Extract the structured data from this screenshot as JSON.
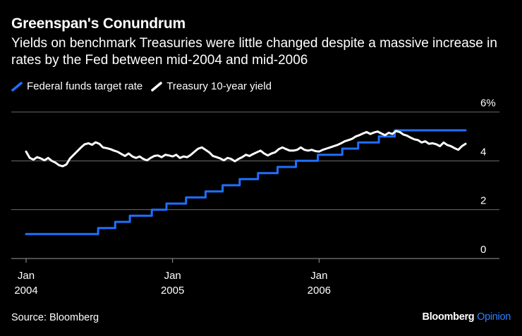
{
  "header": {
    "title": "Greenspan's Conundrum",
    "subtitle": "Yields on benchmark Treasuries were little changed despite a massive increase in rates by the Fed between mid-2004 and mid-2006"
  },
  "footer": {
    "source": "Source: Bloomberg",
    "brand_name": "Bloomberg",
    "brand_product": "Opinion"
  },
  "colors": {
    "background": "#000000",
    "fed_funds": "#1f6fff",
    "treasury": "#ffffff",
    "grid": "#6b6b6b",
    "brand_accent": "#2f7dff"
  },
  "chart_data": {
    "type": "line",
    "title": "Greenspan's Conundrum",
    "xlabel": "",
    "ylabel": "",
    "ylim": [
      0,
      6
    ],
    "xlim": [
      "2004-01",
      "2006-12"
    ],
    "y_ticks": [
      {
        "value": 0,
        "label": "0"
      },
      {
        "value": 2,
        "label": "2"
      },
      {
        "value": 4,
        "label": "4"
      },
      {
        "value": 6,
        "label": "6%"
      }
    ],
    "x_ticks": [
      {
        "month_index": 0,
        "label_top": "Jan",
        "label_bottom": "2004"
      },
      {
        "month_index": 12,
        "label_top": "Jan",
        "label_bottom": "2005"
      },
      {
        "month_index": 24,
        "label_top": "Jan",
        "label_bottom": "2006"
      }
    ],
    "legend": {
      "position": "top-left",
      "items": [
        {
          "name": "Federal funds target rate",
          "series": "fed_funds"
        },
        {
          "name": "Treasury 10-year yield",
          "series": "treasury"
        }
      ]
    },
    "series": [
      {
        "name": "Federal funds target rate",
        "key": "fed_funds",
        "step": true,
        "points": [
          [
            0,
            1.0
          ],
          [
            5.9,
            1.0
          ],
          [
            5.9,
            1.25
          ],
          [
            7.3,
            1.25
          ],
          [
            7.3,
            1.5
          ],
          [
            8.5,
            1.5
          ],
          [
            8.5,
            1.75
          ],
          [
            10.3,
            1.75
          ],
          [
            10.3,
            2.0
          ],
          [
            11.5,
            2.0
          ],
          [
            11.5,
            2.25
          ],
          [
            13.1,
            2.25
          ],
          [
            13.1,
            2.5
          ],
          [
            14.7,
            2.5
          ],
          [
            14.7,
            2.75
          ],
          [
            16.1,
            2.75
          ],
          [
            16.1,
            3.0
          ],
          [
            17.5,
            3.0
          ],
          [
            17.5,
            3.25
          ],
          [
            19.0,
            3.25
          ],
          [
            19.0,
            3.5
          ],
          [
            20.6,
            3.5
          ],
          [
            20.6,
            3.75
          ],
          [
            22.1,
            3.75
          ],
          [
            22.1,
            4.0
          ],
          [
            23.9,
            4.0
          ],
          [
            23.9,
            4.25
          ],
          [
            25.9,
            4.25
          ],
          [
            25.9,
            4.5
          ],
          [
            27.2,
            4.5
          ],
          [
            27.2,
            4.75
          ],
          [
            28.9,
            4.75
          ],
          [
            28.9,
            5.0
          ],
          [
            30.2,
            5.0
          ],
          [
            30.2,
            5.25
          ],
          [
            36.0,
            5.25
          ]
        ]
      },
      {
        "name": "Treasury 10-year yield",
        "key": "treasury",
        "step": false,
        "points": [
          [
            0,
            4.38
          ],
          [
            0.3,
            4.12
          ],
          [
            0.6,
            4.05
          ],
          [
            0.9,
            4.15
          ],
          [
            1.2,
            4.1
          ],
          [
            1.5,
            4.02
          ],
          [
            1.8,
            4.12
          ],
          [
            2.1,
            4.0
          ],
          [
            2.4,
            3.93
          ],
          [
            2.7,
            3.82
          ],
          [
            3.0,
            3.78
          ],
          [
            3.3,
            3.85
          ],
          [
            3.6,
            4.1
          ],
          [
            3.9,
            4.25
          ],
          [
            4.2,
            4.4
          ],
          [
            4.5,
            4.55
          ],
          [
            4.8,
            4.68
          ],
          [
            5.1,
            4.72
          ],
          [
            5.4,
            4.66
          ],
          [
            5.7,
            4.76
          ],
          [
            6.0,
            4.7
          ],
          [
            6.3,
            4.55
          ],
          [
            6.6,
            4.52
          ],
          [
            6.9,
            4.48
          ],
          [
            7.2,
            4.42
          ],
          [
            7.5,
            4.37
          ],
          [
            7.8,
            4.28
          ],
          [
            8.1,
            4.2
          ],
          [
            8.4,
            4.3
          ],
          [
            8.7,
            4.18
          ],
          [
            9.0,
            4.12
          ],
          [
            9.3,
            4.18
          ],
          [
            9.6,
            4.08
          ],
          [
            9.9,
            4.02
          ],
          [
            10.2,
            4.12
          ],
          [
            10.5,
            4.2
          ],
          [
            10.8,
            4.22
          ],
          [
            11.1,
            4.15
          ],
          [
            11.4,
            4.25
          ],
          [
            11.7,
            4.22
          ],
          [
            12.0,
            4.18
          ],
          [
            12.3,
            4.25
          ],
          [
            12.6,
            4.12
          ],
          [
            12.9,
            4.18
          ],
          [
            13.2,
            4.15
          ],
          [
            13.5,
            4.25
          ],
          [
            13.8,
            4.38
          ],
          [
            14.1,
            4.5
          ],
          [
            14.4,
            4.55
          ],
          [
            14.7,
            4.45
          ],
          [
            15.0,
            4.35
          ],
          [
            15.3,
            4.2
          ],
          [
            15.6,
            4.15
          ],
          [
            15.9,
            4.1
          ],
          [
            16.2,
            4.02
          ],
          [
            16.5,
            4.12
          ],
          [
            16.8,
            4.08
          ],
          [
            17.1,
            3.98
          ],
          [
            17.4,
            4.08
          ],
          [
            17.7,
            4.15
          ],
          [
            18.0,
            4.25
          ],
          [
            18.3,
            4.2
          ],
          [
            18.6,
            4.28
          ],
          [
            18.9,
            4.35
          ],
          [
            19.2,
            4.42
          ],
          [
            19.5,
            4.3
          ],
          [
            19.8,
            4.22
          ],
          [
            20.1,
            4.3
          ],
          [
            20.4,
            4.35
          ],
          [
            20.7,
            4.48
          ],
          [
            21.0,
            4.55
          ],
          [
            21.3,
            4.48
          ],
          [
            21.6,
            4.42
          ],
          [
            21.9,
            4.42
          ],
          [
            22.2,
            4.45
          ],
          [
            22.5,
            4.55
          ],
          [
            22.8,
            4.45
          ],
          [
            23.1,
            4.42
          ],
          [
            23.4,
            4.45
          ],
          [
            23.7,
            4.4
          ],
          [
            24.0,
            4.38
          ],
          [
            24.3,
            4.45
          ],
          [
            24.6,
            4.5
          ],
          [
            24.9,
            4.55
          ],
          [
            25.2,
            4.6
          ],
          [
            25.5,
            4.65
          ],
          [
            25.8,
            4.72
          ],
          [
            26.1,
            4.8
          ],
          [
            26.4,
            4.85
          ],
          [
            26.7,
            4.9
          ],
          [
            27.0,
            5.0
          ],
          [
            27.3,
            5.05
          ],
          [
            27.6,
            5.12
          ],
          [
            27.9,
            5.18
          ],
          [
            28.2,
            5.1
          ],
          [
            28.5,
            5.16
          ],
          [
            28.8,
            5.2
          ],
          [
            29.1,
            5.12
          ],
          [
            29.4,
            5.05
          ],
          [
            29.7,
            5.15
          ],
          [
            30.0,
            5.1
          ],
          [
            30.3,
            5.22
          ],
          [
            30.6,
            5.18
          ],
          [
            30.9,
            5.08
          ],
          [
            31.2,
            5.03
          ],
          [
            31.5,
            4.95
          ],
          [
            31.8,
            4.88
          ],
          [
            32.1,
            4.85
          ],
          [
            32.4,
            4.75
          ],
          [
            32.7,
            4.8
          ],
          [
            33.0,
            4.7
          ],
          [
            33.3,
            4.72
          ],
          [
            33.6,
            4.68
          ],
          [
            33.9,
            4.6
          ],
          [
            34.2,
            4.75
          ],
          [
            34.5,
            4.65
          ],
          [
            34.8,
            4.6
          ],
          [
            35.1,
            4.52
          ],
          [
            35.4,
            4.45
          ],
          [
            35.7,
            4.6
          ],
          [
            36.0,
            4.7
          ]
        ]
      }
    ]
  }
}
